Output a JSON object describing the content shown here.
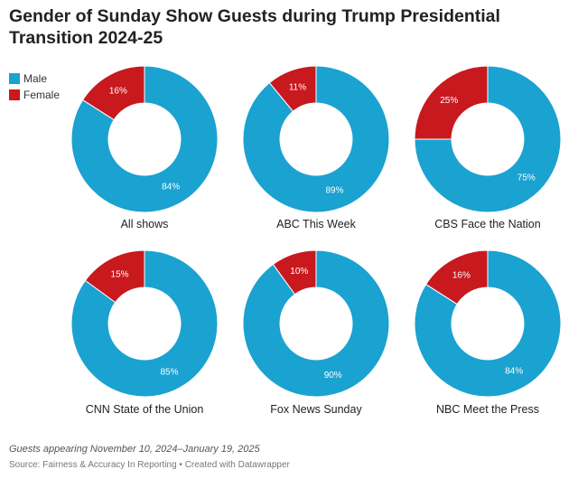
{
  "title": "Gender of Sunday Show Guests during Trump Presidential Transition 2024-25",
  "footnote": "Guests appearing November 10, 2024–January 19, 2025",
  "source": "Source: Fairness & Accuracy In Reporting • Created with Datawrapper",
  "colors": {
    "male": "#1aa2d1",
    "female": "#c8191e"
  },
  "chart_data": {
    "type": "pie",
    "variant": "donut",
    "legend": {
      "position": "top-left",
      "entries": [
        "Male",
        "Female"
      ]
    },
    "charts": [
      {
        "title": "All shows",
        "male": 84,
        "female": 16
      },
      {
        "title": "ABC This Week",
        "male": 89,
        "female": 11
      },
      {
        "title": "CBS Face the Nation",
        "male": 75,
        "female": 25
      },
      {
        "title": "CNN State of the Union",
        "male": 85,
        "female": 15
      },
      {
        "title": "Fox News Sunday",
        "male": 90,
        "female": 10
      },
      {
        "title": "NBC Meet the Press",
        "male": 84,
        "female": 16
      }
    ]
  }
}
